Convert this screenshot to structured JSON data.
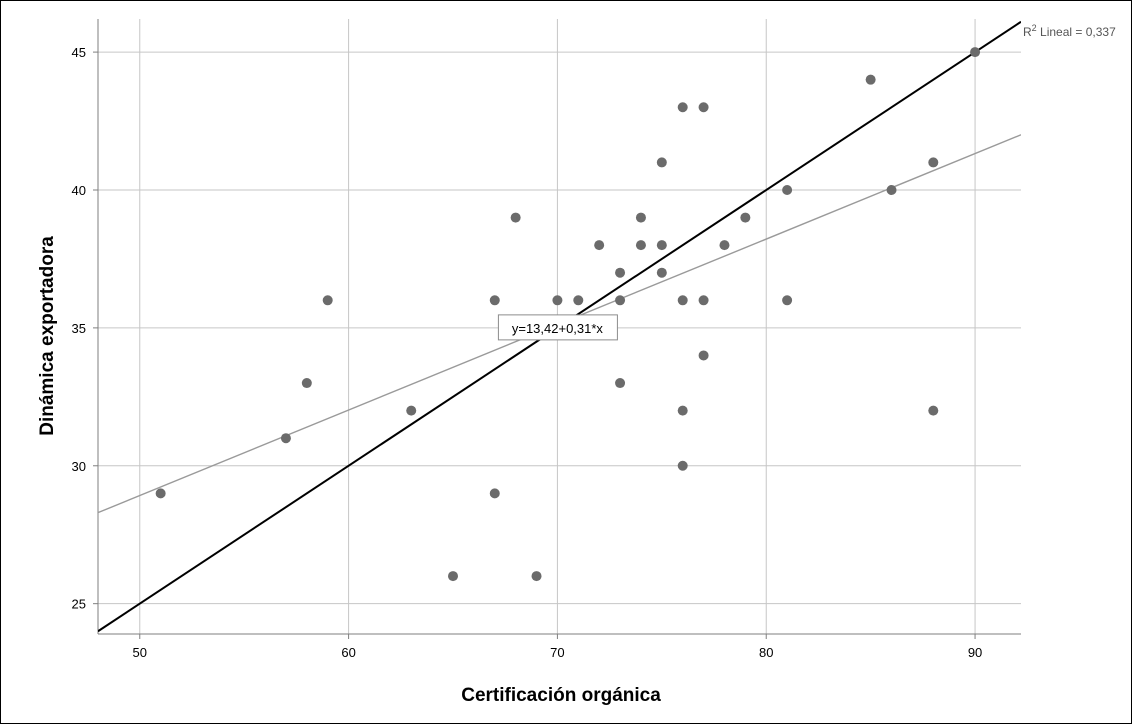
{
  "chart_data": {
    "type": "scatter",
    "title": "",
    "xlabel": "Certificación orgánica",
    "ylabel": "Dinámica exportadora",
    "xlim": [
      48,
      92.2
    ],
    "ylim": [
      23.9,
      46.2
    ],
    "x_ticks": [
      50,
      60,
      70,
      80,
      90
    ],
    "y_ticks": [
      25,
      30,
      35,
      40,
      45
    ],
    "grid": true,
    "legend": "none",
    "points": [
      [
        51,
        29
      ],
      [
        57,
        31
      ],
      [
        58,
        33
      ],
      [
        59,
        36
      ],
      [
        63,
        32
      ],
      [
        65,
        26
      ],
      [
        67,
        36
      ],
      [
        67,
        29
      ],
      [
        68,
        39
      ],
      [
        69,
        26
      ],
      [
        70,
        36
      ],
      [
        71,
        36
      ],
      [
        72,
        38
      ],
      [
        73,
        37
      ],
      [
        73,
        36
      ],
      [
        73,
        33
      ],
      [
        74,
        39
      ],
      [
        74,
        38
      ],
      [
        75,
        41
      ],
      [
        75,
        38
      ],
      [
        75,
        37
      ],
      [
        76,
        43
      ],
      [
        76,
        36
      ],
      [
        76,
        32
      ],
      [
        76,
        30
      ],
      [
        77,
        43
      ],
      [
        77,
        36
      ],
      [
        77,
        34
      ],
      [
        78,
        38
      ],
      [
        79,
        39
      ],
      [
        81,
        40
      ],
      [
        81,
        36
      ],
      [
        85,
        44
      ],
      [
        86,
        40
      ],
      [
        88,
        41
      ],
      [
        88,
        32
      ],
      [
        90,
        45
      ]
    ],
    "fit_line": {
      "intercept": 13.42,
      "slope": 0.31,
      "label": "y=13,42+0,31*x",
      "label_at": [
        70,
        35
      ]
    },
    "reference_line": {
      "intercept": 0,
      "slope": 0.5
    },
    "r2_label": {
      "prefix": "R",
      "sup": "2",
      "suffix": " Lineal = 0,337"
    },
    "colors": {
      "points": "#6b6b6b",
      "fit_line": "#9a9a9a",
      "reference_line": "#000000",
      "grid": "#c6c6c6",
      "axis": "#7f7f7f"
    }
  }
}
